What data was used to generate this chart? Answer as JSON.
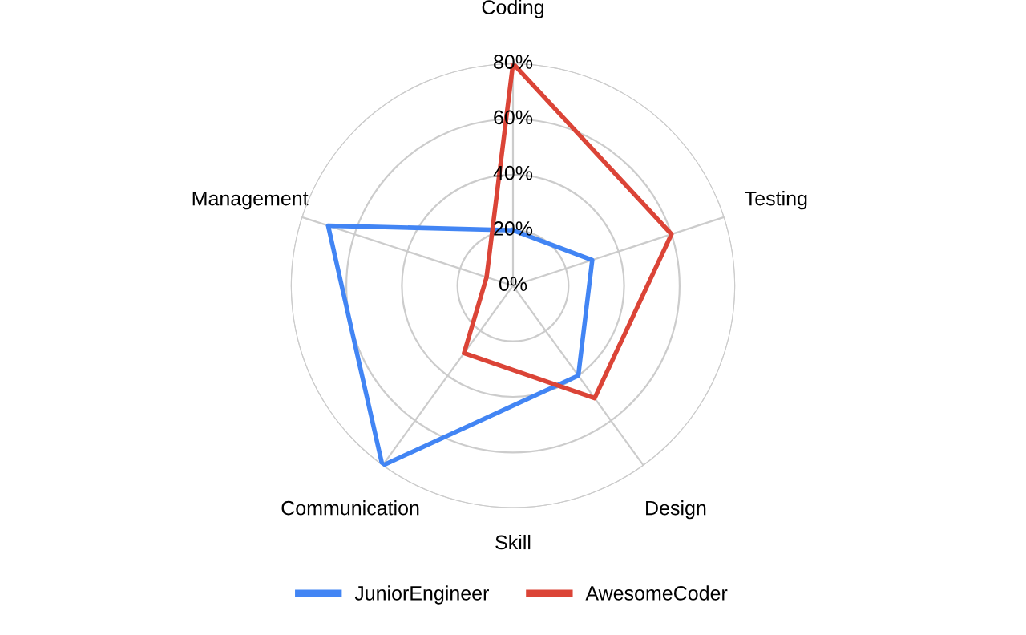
{
  "chart_data": {
    "type": "radar",
    "xlabel": "Skill",
    "categories": [
      "Coding",
      "Testing",
      "Design",
      "Communication",
      "Management"
    ],
    "series": [
      {
        "name": "JuniorEngineer",
        "color": "#4285f4",
        "values": [
          20,
          30,
          40,
          80,
          70
        ]
      },
      {
        "name": "AwesomeCoder",
        "color": "#db4437",
        "values": [
          80,
          60,
          50,
          30,
          10
        ]
      }
    ],
    "ylim": [
      0,
      80
    ],
    "yticks": [
      {
        "value": 0,
        "label": "0%"
      },
      {
        "value": 20,
        "label": "20%"
      },
      {
        "value": 40,
        "label": "40%"
      },
      {
        "value": 60,
        "label": "60%"
      },
      {
        "value": 80,
        "label": "80%"
      }
    ],
    "grid": true,
    "legend": "bottom"
  }
}
